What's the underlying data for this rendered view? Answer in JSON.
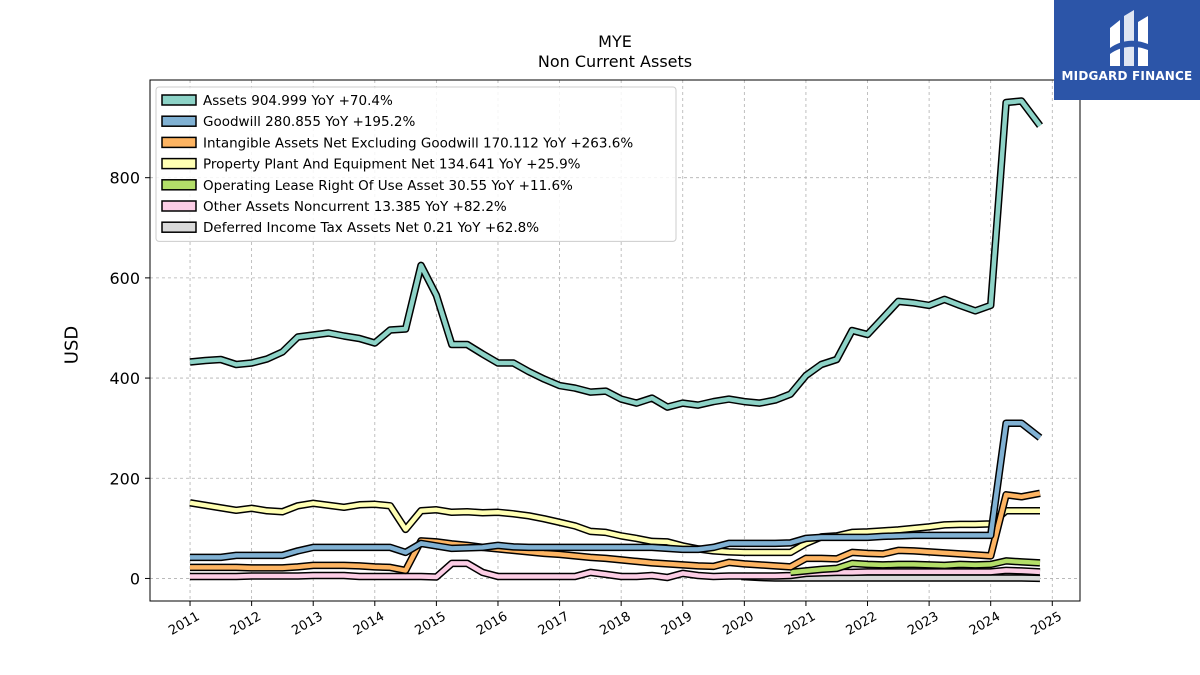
{
  "chart_data": {
    "type": "line",
    "title": "MYE",
    "subtitle": "Non Current  Assets",
    "ylabel": "USD",
    "xlabel": "",
    "ylim": [
      -45,
      995
    ],
    "xlim": [
      2010.35,
      2025.45
    ],
    "x_ticks": [
      "2011",
      "2012",
      "2013",
      "2014",
      "2015",
      "2016",
      "2017",
      "2018",
      "2019",
      "2020",
      "2021",
      "2022",
      "2023",
      "2024",
      "2025"
    ],
    "y_ticks": [
      0,
      200,
      400,
      600,
      800
    ],
    "grid": true,
    "legend_position": "top-left",
    "series": [
      {
        "name": "Assets",
        "legend": "Assets  904.999 YoY +70.4%",
        "color": "#8dd3c7",
        "x": [
          2011.0,
          2011.25,
          2011.5,
          2011.75,
          2012.0,
          2012.25,
          2012.5,
          2012.75,
          2013.0,
          2013.25,
          2013.5,
          2013.75,
          2014.0,
          2014.25,
          2014.5,
          2014.75,
          2015.0,
          2015.25,
          2015.5,
          2015.75,
          2016.0,
          2016.25,
          2016.5,
          2016.75,
          2017.0,
          2017.25,
          2017.5,
          2017.75,
          2018.0,
          2018.25,
          2018.5,
          2018.75,
          2019.0,
          2019.25,
          2019.5,
          2019.75,
          2020.0,
          2020.25,
          2020.5,
          2020.75,
          2021.0,
          2021.25,
          2021.5,
          2021.75,
          2022.0,
          2022.25,
          2022.5,
          2022.75,
          2023.0,
          2023.25,
          2023.5,
          2023.75,
          2024.0,
          2024.25,
          2024.5,
          2024.8
        ],
        "values": [
          432,
          435,
          437,
          427,
          430,
          438,
          452,
          482,
          486,
          490,
          484,
          479,
          470,
          496,
          498,
          625,
          565,
          467,
          467,
          448,
          430,
          430,
          413,
          398,
          385,
          380,
          372,
          374,
          358,
          350,
          360,
          342,
          350,
          346,
          353,
          358,
          353,
          350,
          356,
          368,
          405,
          427,
          437,
          495,
          487,
          520,
          553,
          550,
          545,
          557,
          545,
          534,
          545,
          950,
          953,
          904
        ]
      },
      {
        "name": "Goodwill",
        "legend": "Goodwill  280.855 YoY +195.2%",
        "color": "#80b1d3",
        "x": [
          2011.0,
          2011.25,
          2011.5,
          2011.75,
          2012.0,
          2012.25,
          2012.5,
          2012.75,
          2013.0,
          2013.25,
          2013.5,
          2013.75,
          2014.0,
          2014.25,
          2014.5,
          2014.75,
          2015.0,
          2015.25,
          2015.5,
          2015.75,
          2016.0,
          2016.25,
          2016.5,
          2016.75,
          2017.0,
          2017.25,
          2017.5,
          2017.75,
          2018.0,
          2018.25,
          2018.5,
          2018.75,
          2019.0,
          2019.25,
          2019.5,
          2019.75,
          2020.0,
          2020.25,
          2020.5,
          2020.75,
          2021.0,
          2021.25,
          2021.5,
          2021.75,
          2022.0,
          2022.25,
          2022.5,
          2022.75,
          2023.0,
          2023.25,
          2023.5,
          2023.75,
          2024.0,
          2024.25,
          2024.5,
          2024.8
        ],
        "values": [
          42,
          42,
          42,
          46,
          46,
          46,
          46,
          55,
          62,
          62,
          62,
          62,
          62,
          62,
          52,
          70,
          65,
          60,
          61,
          62,
          66,
          63,
          62,
          62,
          62,
          62,
          62,
          62,
          62,
          62,
          62,
          60,
          58,
          58,
          62,
          70,
          70,
          70,
          70,
          71,
          80,
          82,
          82,
          82,
          82,
          84,
          85,
          86,
          86,
          86,
          86,
          86,
          86,
          310,
          310,
          281
        ]
      },
      {
        "name": "Intangible Assets Net Excluding Goodwill",
        "legend": "Intangible Assets Net Excluding Goodwill  170.112 YoY +263.6%",
        "color": "#fdb462",
        "x": [
          2011.0,
          2011.25,
          2011.5,
          2011.75,
          2012.0,
          2012.25,
          2012.5,
          2012.75,
          2013.0,
          2013.25,
          2013.5,
          2013.75,
          2014.0,
          2014.25,
          2014.5,
          2014.75,
          2015.0,
          2015.25,
          2015.5,
          2015.75,
          2016.0,
          2016.25,
          2016.5,
          2016.75,
          2017.0,
          2017.25,
          2017.5,
          2017.75,
          2018.0,
          2018.25,
          2018.5,
          2018.75,
          2019.0,
          2019.25,
          2019.5,
          2019.75,
          2020.0,
          2020.25,
          2020.5,
          2020.75,
          2021.0,
          2021.25,
          2021.5,
          2021.75,
          2022.0,
          2022.25,
          2022.5,
          2022.75,
          2023.0,
          2023.25,
          2023.5,
          2023.75,
          2024.0,
          2024.25,
          2024.5,
          2024.8
        ],
        "values": [
          22,
          22,
          22,
          22,
          21,
          21,
          21,
          23,
          26,
          26,
          26,
          25,
          23,
          22,
          16,
          75,
          73,
          69,
          66,
          62,
          59,
          56,
          53,
          50,
          48,
          45,
          42,
          40,
          37,
          34,
          31,
          29,
          27,
          25,
          24,
          32,
          29,
          27,
          25,
          23,
          40,
          40,
          39,
          52,
          50,
          49,
          56,
          55,
          53,
          51,
          49,
          47,
          45,
          167,
          163,
          170
        ]
      },
      {
        "name": "Property Plant And Equipment Net",
        "legend": "Property Plant And Equipment Net  134.641 YoY +25.9%",
        "color": "#ffffb3",
        "x": [
          2011.0,
          2011.25,
          2011.5,
          2011.75,
          2012.0,
          2012.25,
          2012.5,
          2012.75,
          2013.0,
          2013.25,
          2013.5,
          2013.75,
          2014.0,
          2014.25,
          2014.5,
          2014.75,
          2015.0,
          2015.25,
          2015.5,
          2015.75,
          2016.0,
          2016.25,
          2016.5,
          2016.75,
          2017.0,
          2017.25,
          2017.5,
          2017.75,
          2018.0,
          2018.25,
          2018.5,
          2018.75,
          2019.0,
          2019.25,
          2019.5,
          2019.75,
          2020.0,
          2020.25,
          2020.5,
          2020.75,
          2021.0,
          2021.25,
          2021.5,
          2021.75,
          2022.0,
          2022.25,
          2022.5,
          2022.75,
          2023.0,
          2023.25,
          2023.5,
          2023.75,
          2024.0,
          2024.25,
          2024.5,
          2024.8
        ],
        "values": [
          151,
          146,
          141,
          136,
          140,
          135,
          133,
          145,
          150,
          146,
          142,
          147,
          148,
          145,
          98,
          135,
          137,
          132,
          133,
          131,
          132,
          129,
          125,
          119,
          112,
          105,
          94,
          92,
          85,
          80,
          74,
          73,
          65,
          59,
          55,
          53,
          52,
          52,
          52,
          52,
          70,
          83,
          85,
          92,
          93,
          95,
          97,
          100,
          103,
          107,
          108,
          108,
          109,
          135,
          135,
          135
        ]
      },
      {
        "name": "Operating Lease Right Of Use Asset",
        "legend": "Operating Lease Right Of Use Asset  30.55 YoY +11.6%",
        "color": "#b3de69",
        "x": [
          2020.75,
          2021.0,
          2021.25,
          2021.5,
          2021.75,
          2022.0,
          2022.25,
          2022.5,
          2022.75,
          2023.0,
          2023.25,
          2023.5,
          2023.75,
          2024.0,
          2024.25,
          2024.5,
          2024.8
        ],
        "values": [
          12,
          15,
          18,
          20,
          30,
          28,
          27,
          28,
          28,
          27,
          26,
          28,
          27,
          28,
          35,
          33,
          31
        ]
      },
      {
        "name": "Other Assets Noncurrent",
        "legend": "Other Assets Noncurrent  13.385 YoY +82.2%",
        "color": "#fccde5",
        "x": [
          2011.0,
          2011.25,
          2011.5,
          2011.75,
          2012.0,
          2012.25,
          2012.5,
          2012.75,
          2013.0,
          2013.25,
          2013.5,
          2013.75,
          2014.0,
          2014.25,
          2014.5,
          2014.75,
          2015.0,
          2015.25,
          2015.5,
          2015.75,
          2016.0,
          2016.25,
          2016.5,
          2016.75,
          2017.0,
          2017.25,
          2017.5,
          2017.75,
          2018.0,
          2018.25,
          2018.5,
          2018.75,
          2019.0,
          2019.25,
          2019.5,
          2019.75,
          2020.0,
          2020.25,
          2020.5,
          2020.75,
          2021.0,
          2021.25,
          2021.5,
          2021.75,
          2022.0,
          2022.25,
          2022.5,
          2022.75,
          2023.0,
          2023.25,
          2023.5,
          2023.75,
          2024.0,
          2024.25,
          2024.5,
          2024.8
        ],
        "values": [
          4,
          4,
          4,
          4,
          5,
          5,
          5,
          5,
          6,
          6,
          6,
          4,
          4,
          4,
          4,
          4,
          3,
          30,
          30,
          12,
          4,
          4,
          4,
          4,
          4,
          4,
          12,
          8,
          4,
          4,
          6,
          2,
          10,
          6,
          4,
          5,
          5,
          5,
          5,
          6,
          10,
          11,
          12,
          12,
          13,
          13,
          13,
          13,
          13,
          13,
          13,
          13,
          13,
          16,
          15,
          13
        ]
      },
      {
        "name": "Deferred Income Tax Assets Net",
        "legend": "Deferred Income Tax Assets Net  0.21 YoY +62.8%",
        "color": "#d9d9d9",
        "x": [
          2019.95,
          2020.25,
          2020.5,
          2020.75,
          2021.0,
          2021.25,
          2021.5,
          2021.75,
          2022.0,
          2022.25,
          2022.5,
          2022.75,
          2023.0,
          2023.25,
          2023.5,
          2023.75,
          2024.0,
          2024.25,
          2024.5,
          2024.8
        ],
        "values": [
          4,
          2,
          1,
          1,
          1,
          1,
          1,
          1,
          1,
          1,
          1,
          1,
          1,
          1,
          1,
          1,
          1,
          1,
          1,
          0.21
        ]
      }
    ]
  },
  "logo": {
    "brand": "MIDGARD FINANCE",
    "background": "#2c55a8"
  }
}
